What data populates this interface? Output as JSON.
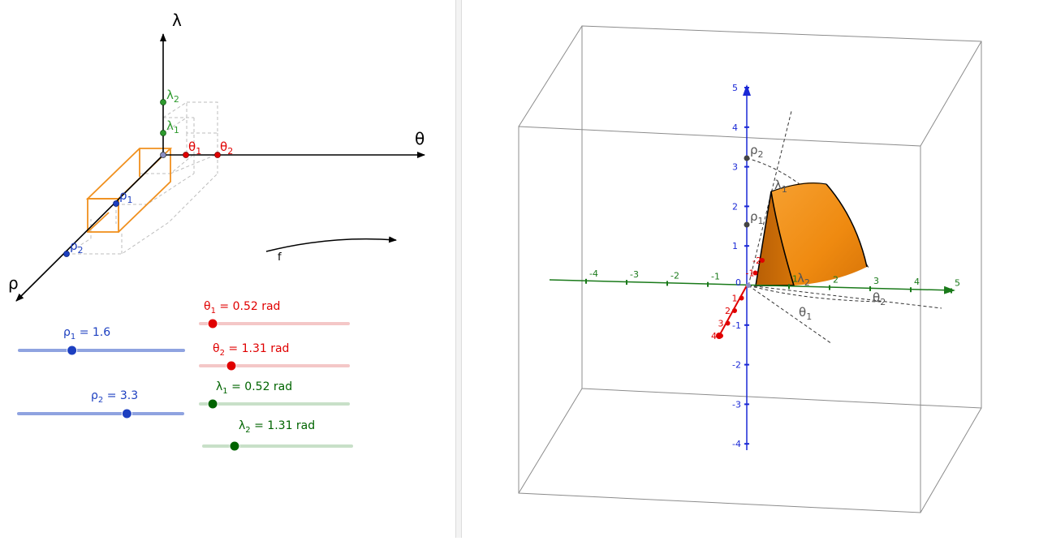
{
  "left_panel": {
    "axes": {
      "lambda": "λ",
      "theta": "θ",
      "rho": "ρ"
    },
    "points": {
      "lambda1": {
        "base": "λ",
        "sub": "1"
      },
      "lambda2": {
        "base": "λ",
        "sub": "2"
      },
      "theta1": {
        "base": "θ",
        "sub": "1"
      },
      "theta2": {
        "base": "θ",
        "sub": "2"
      },
      "rho1": {
        "base": "ρ",
        "sub": "1"
      },
      "rho2": {
        "base": "ρ",
        "sub": "2"
      }
    },
    "map_label": "f",
    "sliders": {
      "rho1": {
        "base": "ρ",
        "sub": "1",
        "rest": " = 1.6",
        "value": 1.6,
        "min": 0,
        "max": 5,
        "color": "#1c3fc0",
        "track": "#8fa3e0"
      },
      "rho2": {
        "base": "ρ",
        "sub": "2",
        "rest": " = 3.3",
        "value": 3.3,
        "min": 0,
        "max": 5,
        "color": "#1c3fc0",
        "track": "#8fa3e0"
      },
      "theta1": {
        "base": "θ",
        "sub": "1",
        "rest": " = 0.52 rad",
        "value": 0.52,
        "min": 0,
        "max": 6.28,
        "color": "#e00000",
        "track": "#f4c7c7"
      },
      "theta2": {
        "base": "θ",
        "sub": "2",
        "rest": " = 1.31 rad",
        "value": 1.31,
        "min": 0,
        "max": 6.28,
        "color": "#e00000",
        "track": "#f4c7c7"
      },
      "lambda1": {
        "base": "λ",
        "sub": "1",
        "rest": " = 0.52 rad",
        "value": 0.52,
        "min": 0,
        "max": 6.28,
        "color": "#006400",
        "track": "#c8e0c8"
      },
      "lambda2": {
        "base": "λ",
        "sub": "2",
        "rest": " = 1.31 rad",
        "value": 1.31,
        "min": 0,
        "max": 6.28,
        "color": "#006400",
        "track": "#c8e0c8"
      }
    }
  },
  "right_panel": {
    "z_ticks": [
      "5",
      "4",
      "3",
      "2",
      "1",
      "-1",
      "-2",
      "-3",
      "-4"
    ],
    "y_ticks": [
      "-4",
      "-3",
      "-2",
      "-1",
      "1",
      "2",
      "3",
      "4",
      "5"
    ],
    "x_ticks": [
      "4",
      "3",
      "2",
      "1",
      "-1",
      "-2"
    ],
    "origin": "0",
    "labels": {
      "rho1": {
        "base": "ρ",
        "sub": "1"
      },
      "rho2": {
        "base": "ρ",
        "sub": "2"
      },
      "lambda1": {
        "base": "λ",
        "sub": "1"
      },
      "lambda2": {
        "base": "λ",
        "sub": "2"
      },
      "theta1": {
        "base": "θ",
        "sub": "1"
      },
      "theta2": {
        "base": "θ",
        "sub": "2"
      }
    },
    "colors": {
      "solid": "#f08a10",
      "z_axis": "#1a28d6",
      "y_axis": "#1a7a1a",
      "x_axis": "#e00000"
    }
  }
}
